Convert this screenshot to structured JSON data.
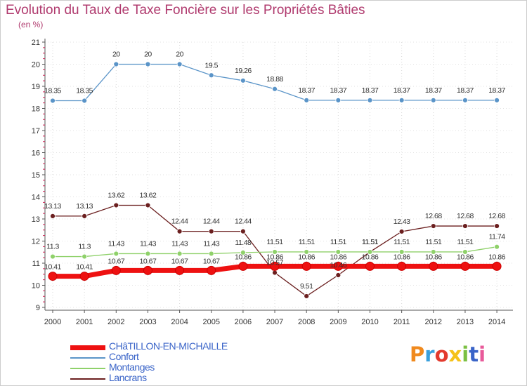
{
  "chart_data": {
    "type": "line",
    "title": "Evolution du Taux de Taxe Foncière sur les Propriétés Bâties",
    "unit_label": "(en %)",
    "xlabel": "",
    "ylabel": "",
    "ylim": [
      9,
      21
    ],
    "y_ticks": [
      "9",
      "10",
      "11",
      "12",
      "13",
      "14",
      "15",
      "16",
      "17",
      "18",
      "19",
      "20",
      "21"
    ],
    "categories": [
      "2000",
      "2001",
      "2002",
      "2003",
      "2004",
      "2005",
      "2006",
      "2007",
      "2008",
      "2009",
      "2010",
      "2011",
      "2012",
      "2013",
      "2014"
    ],
    "series": [
      {
        "name": "Lancrans",
        "color": "#6b1f1f",
        "values": [
          13.13,
          13.13,
          13.62,
          13.62,
          12.44,
          12.44,
          12.44,
          10.57,
          9.51,
          10.46,
          11.51,
          12.43,
          12.68,
          12.68,
          12.68
        ],
        "labels": [
          "13.13",
          "13.13",
          "13.62",
          "13.62",
          "12.44",
          "12.44",
          "12.44",
          "10.57",
          "9.51",
          "10.46",
          "11.51",
          "12.43",
          "12.68",
          "12.68",
          "12.68"
        ]
      },
      {
        "name": "Montanges",
        "color": "#8fd16a",
        "values": [
          11.3,
          11.3,
          11.43,
          11.43,
          11.43,
          11.43,
          11.48,
          11.51,
          11.51,
          11.51,
          11.51,
          11.51,
          11.51,
          11.51,
          11.74
        ],
        "labels": [
          "11.3",
          "11.3",
          "11.43",
          "11.43",
          "11.43",
          "11.43",
          "11.48",
          "11.51",
          "11.51",
          "11.51",
          "11.51",
          "11.51",
          "11.51",
          "11.51",
          "11.74"
        ]
      },
      {
        "name": "Confort",
        "color": "#5a94c8",
        "values": [
          18.35,
          18.35,
          20,
          20,
          20,
          19.5,
          19.26,
          18.88,
          18.37,
          18.37,
          18.37,
          18.37,
          18.37,
          18.37,
          18.37
        ],
        "labels": [
          "18.35",
          "18.35",
          "20",
          "20",
          "20",
          "19.5",
          "19.26",
          "18.88",
          "18.37",
          "18.37",
          "18.37",
          "18.37",
          "18.37",
          "18.37",
          "18.37"
        ]
      },
      {
        "name": "CHâTILLON-EN-MICHAILLE",
        "color": "#ee1111",
        "values": [
          10.41,
          10.41,
          10.67,
          10.67,
          10.67,
          10.67,
          10.86,
          10.86,
          10.86,
          10.86,
          10.86,
          10.86,
          10.86,
          10.86,
          10.86
        ],
        "labels": [
          "10.41",
          "10.41",
          "10.67",
          "10.67",
          "10.67",
          "10.67",
          "10.86",
          "10.86",
          "10.86",
          "10.86",
          "10.86",
          "10.86",
          "10.86",
          "10.86",
          "10.86"
        ]
      }
    ],
    "legend": [
      "CHâTILLON-EN-MICHAILLE",
      "Confort",
      "Montanges",
      "Lancrans"
    ]
  },
  "brand": {
    "letters": [
      "P",
      "r",
      "o",
      "x",
      "i",
      "t",
      "i"
    ],
    "colors": [
      "#f08a1e",
      "#3aa0dc",
      "#e33a2e",
      "#f5c21a",
      "#7bc043",
      "#3a64c8",
      "#e85a9a"
    ]
  }
}
